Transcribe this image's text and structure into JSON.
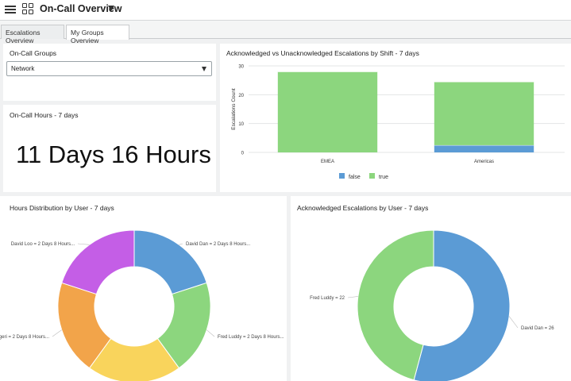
{
  "header": {
    "title": "On-Call Overview"
  },
  "tabs": [
    {
      "label": "Escalations Overview"
    },
    {
      "label": "My Groups Overview"
    }
  ],
  "groups_widget": {
    "title": "On-Call Groups",
    "selected": "Network"
  },
  "hours_widget": {
    "title": "On-Call Hours - 7 days",
    "value": "11 Days 16 Hours"
  },
  "bar_widget": {
    "title": "Acknowledged vs Unacknowledged Escalations by Shift - 7 days",
    "chart_data": {
      "type": "bar",
      "stacked": true,
      "categories": [
        "EMEA",
        "Americas"
      ],
      "series": [
        {
          "name": "false",
          "values": [
            0,
            2.5
          ],
          "color": "#5b9bd5"
        },
        {
          "name": "true",
          "values": [
            28,
            22
          ],
          "color": "#8cd67e"
        }
      ],
      "ylabel": "Escalations Count",
      "yticks": [
        "0",
        "10",
        "20",
        "30"
      ],
      "ylim": [
        0,
        30
      ],
      "grid": true,
      "legend": "bottom"
    }
  },
  "donut1_widget": {
    "title": "Hours Distribution by User - 7 days",
    "chart_data": {
      "type": "pie",
      "donut": true,
      "slices": [
        {
          "label": "David Dan = 2 Days 8 Hours...",
          "value": 20,
          "color": "#5b9bd5"
        },
        {
          "label": "Fred Luddy = 2 Days 8 Hours...",
          "value": 20,
          "color": "#8cd67e"
        },
        {
          "label": "",
          "value": 20,
          "color": "#f9d45c"
        },
        {
          "label": "uggeri = 2 Days 8 Hours...",
          "value": 20,
          "color": "#f2a44a"
        },
        {
          "label": "David Loo = 2 Days 8 Hours...",
          "value": 20,
          "color": "#c45ee6"
        }
      ]
    }
  },
  "donut2_widget": {
    "title": "Acknowledged Escalations by User - 7 days",
    "chart_data": {
      "type": "pie",
      "donut": true,
      "slices": [
        {
          "label": "David Dan = 26",
          "value": 26,
          "color": "#5b9bd5"
        },
        {
          "label": "Fred Luddy = 22",
          "value": 22,
          "color": "#8cd67e"
        }
      ]
    }
  }
}
